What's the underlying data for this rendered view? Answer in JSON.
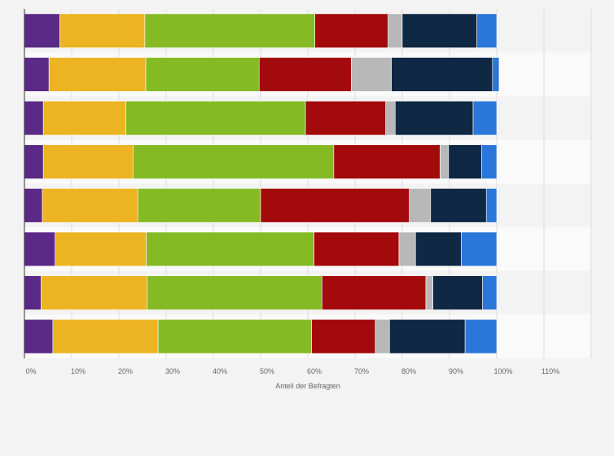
{
  "chart_data": {
    "type": "bar",
    "orientation": "horizontal",
    "stacked": true,
    "xlabel": "Anteil der Befragten",
    "xlim": [
      0,
      120
    ],
    "x_ticks": [
      "0%",
      "10%",
      "20%",
      "30%",
      "40%",
      "50%",
      "60%",
      "70%",
      "80%",
      "90%",
      "100%",
      "110%"
    ],
    "grid": true,
    "series": [
      {
        "color": "#5b2a86",
        "values": [
          7.5,
          5.2,
          4.0,
          4.0,
          3.8,
          6.5,
          3.5,
          6.0
        ]
      },
      {
        "color": "#ecb422",
        "values": [
          18.0,
          20.5,
          17.5,
          19.0,
          20.2,
          19.3,
          22.5,
          22.3
        ]
      },
      {
        "color": "#84bb25",
        "values": [
          36.0,
          24.0,
          38.0,
          42.5,
          26.0,
          35.5,
          37.0,
          32.5
        ]
      },
      {
        "color": "#a30a0b",
        "values": [
          15.5,
          19.5,
          17.0,
          22.5,
          31.5,
          18.0,
          22.0,
          13.5
        ]
      },
      {
        "color": "#b8b8b8",
        "values": [
          3.0,
          8.5,
          2.0,
          1.8,
          4.5,
          3.5,
          1.5,
          3.0
        ]
      },
      {
        "color": "#0f2844",
        "values": [
          15.8,
          21.4,
          16.5,
          7.0,
          11.8,
          9.7,
          10.5,
          16.0
        ]
      },
      {
        "color": "#2a77d9",
        "values": [
          4.2,
          1.4,
          5.0,
          3.2,
          2.2,
          7.5,
          3.0,
          6.7
        ]
      }
    ]
  }
}
